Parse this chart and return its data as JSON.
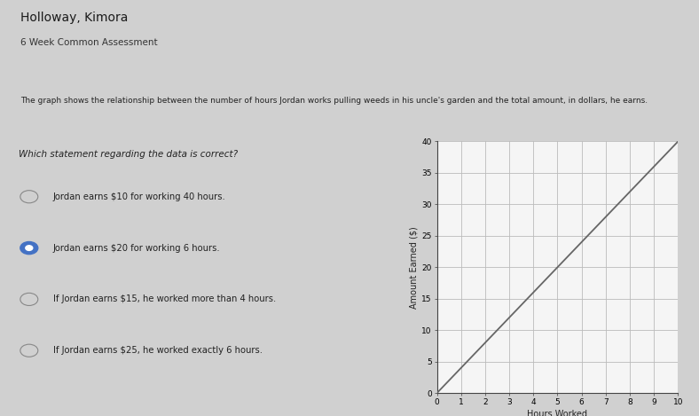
{
  "title_name": "Holloway, Kimora",
  "title_subtitle": "6 Week Common Assessment",
  "header_bar_color1": "#3a5fa0",
  "header_bar_color2": "#6b8fc4",
  "description": "The graph shows the relationship between the number of hours Jordan works pulling weeds in his uncle's garden and the total amount, in dollars, he earns.",
  "graph_xlabel": "Hours Worked",
  "graph_ylabel": "Amount Earned ($)",
  "x_min": 0,
  "x_max": 10,
  "y_min": 0,
  "y_max": 40,
  "x_ticks": [
    0,
    1,
    2,
    3,
    4,
    5,
    6,
    7,
    8,
    9,
    10
  ],
  "y_ticks": [
    0,
    5,
    10,
    15,
    20,
    25,
    30,
    35,
    40
  ],
  "line_x": [
    0,
    10
  ],
  "line_y": [
    0,
    40
  ],
  "line_color": "#666666",
  "grid_color": "#bbbbbb",
  "question": "Which statement regarding the data is correct?",
  "options": [
    {
      "text": "Jordan earns $10 for working 40 hours.",
      "selected": false
    },
    {
      "text": "Jordan earns $20 for working 6 hours.",
      "selected": true
    },
    {
      "text": "If Jordan earns $15, he worked more than 4 hours.",
      "selected": false
    },
    {
      "text": "If Jordan earns $25, he worked exactly 6 hours.",
      "selected": false
    }
  ],
  "outer_bg": "#d0d0d0",
  "inner_bg": "#e8e8e8",
  "white_bg": "#f0f0f0"
}
